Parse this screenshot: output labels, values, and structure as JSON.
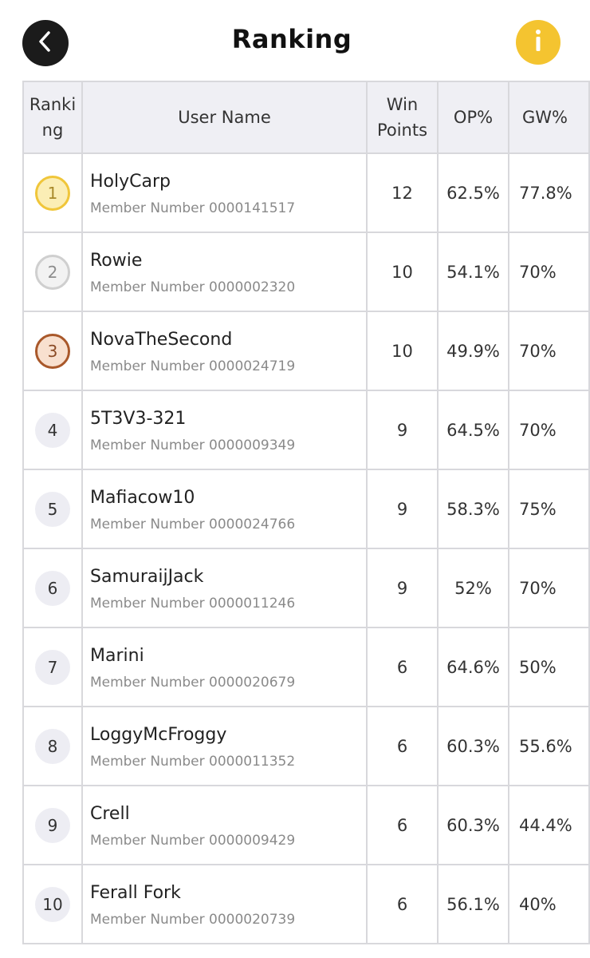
{
  "header": {
    "title": "Ranking",
    "back_icon": "chevron-left-icon",
    "info_icon": "info-icon",
    "info_label": "i"
  },
  "colors": {
    "info_button": "#f4c430",
    "back_button": "#1b1b1b",
    "gold": "#f0c63a",
    "silver": "#cfcfcf",
    "bronze": "#a9582a"
  },
  "table": {
    "columns": [
      "Ranki\nng",
      "User Name",
      "Win\nPoints",
      "OP%",
      "GW%"
    ],
    "rows": [
      {
        "rank": "1",
        "medal": "gold",
        "name": "HolyCarp",
        "member": "Member Number 0000141517",
        "win_points": "12",
        "op": "62.5%",
        "gw": "77.8%"
      },
      {
        "rank": "2",
        "medal": "silver",
        "name": "Rowie",
        "member": "Member Number 0000002320",
        "win_points": "10",
        "op": "54.1%",
        "gw": "70%"
      },
      {
        "rank": "3",
        "medal": "bronze",
        "name": "NovaTheSecond",
        "member": "Member Number 0000024719",
        "win_points": "10",
        "op": "49.9%",
        "gw": "70%"
      },
      {
        "rank": "4",
        "medal": "",
        "name": "5T3V3-321",
        "member": "Member Number 0000009349",
        "win_points": "9",
        "op": "64.5%",
        "gw": "70%"
      },
      {
        "rank": "5",
        "medal": "",
        "name": "Mafiacow10",
        "member": "Member Number 0000024766",
        "win_points": "9",
        "op": "58.3%",
        "gw": "75%"
      },
      {
        "rank": "6",
        "medal": "",
        "name": "SamuraijJack",
        "member": "Member Number 0000011246",
        "win_points": "9",
        "op": "52%",
        "gw": "70%"
      },
      {
        "rank": "7",
        "medal": "",
        "name": "Marini",
        "member": "Member Number 0000020679",
        "win_points": "6",
        "op": "64.6%",
        "gw": "50%"
      },
      {
        "rank": "8",
        "medal": "",
        "name": "LoggyMcFroggy",
        "member": "Member Number 0000011352",
        "win_points": "6",
        "op": "60.3%",
        "gw": "55.6%"
      },
      {
        "rank": "9",
        "medal": "",
        "name": "Crell",
        "member": "Member Number 0000009429",
        "win_points": "6",
        "op": "60.3%",
        "gw": "44.4%"
      },
      {
        "rank": "10",
        "medal": "",
        "name": "Ferall Fork",
        "member": "Member Number 0000020739",
        "win_points": "6",
        "op": "56.1%",
        "gw": "40%"
      }
    ]
  }
}
